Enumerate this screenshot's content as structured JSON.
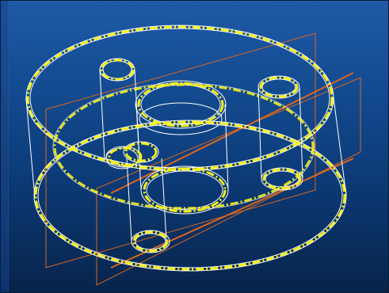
{
  "viewport": {
    "icon": "cad-3d-viewport",
    "colors": {
      "background_top": "#1f5aa8",
      "background_bottom": "#07244a",
      "wireframe_edges": "#ffffff",
      "highlight_edges": "#f5f21a",
      "section_planes": "#d9661f"
    }
  }
}
